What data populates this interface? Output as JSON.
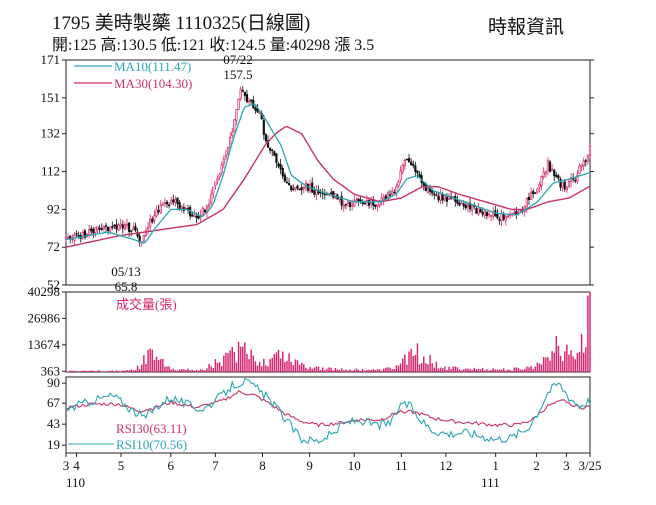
{
  "header": {
    "title": "1795  美時製藥 1110325(日線圖)",
    "source": "時報資訊",
    "quote_line": "開:125 高:130.5 低:121 收:124.5 量:40298 漲 3.5"
  },
  "colors": {
    "up": "#d6246e",
    "down": "#111111",
    "ma10": "#2aa6b0",
    "ma30": "#c8326a",
    "rsi10": "#2aa6b0",
    "rsi30": "#c8326a",
    "volume": "#d6246e",
    "frame": "#222222"
  },
  "chart_data": [
    {
      "type": "candlestick",
      "title": "1795 美時製藥 1110325(日線圖)",
      "y_ticks": [
        171,
        151,
        132,
        112,
        92,
        72,
        52
      ],
      "ylim": [
        52,
        171
      ],
      "legend": [
        {
          "name": "MA10",
          "label": "MA10(111.47)"
        },
        {
          "name": "MA30",
          "label": "MA30(104.30)"
        }
      ],
      "annotations": [
        {
          "date": "07/22",
          "value": "157.5",
          "kind": "high"
        },
        {
          "date": "05/13",
          "value": "65.8",
          "kind": "low"
        }
      ],
      "price_anchors": [
        [
          0,
          76
        ],
        [
          0.07,
          82
        ],
        [
          0.11,
          84
        ],
        [
          0.14,
          78
        ],
        [
          0.1,
          80
        ],
        [
          0.12,
          72
        ],
        [
          0.13,
          68
        ],
        [
          0.15,
          80
        ],
        [
          0.17,
          90
        ],
        [
          0.19,
          96
        ],
        [
          0.21,
          96
        ],
        [
          0.225,
          92
        ],
        [
          0.25,
          88
        ],
        [
          0.27,
          94
        ],
        [
          0.29,
          108
        ],
        [
          0.31,
          124
        ],
        [
          0.325,
          146
        ],
        [
          0.335,
          156
        ],
        [
          0.345,
          150
        ],
        [
          0.37,
          144
        ],
        [
          0.38,
          130
        ],
        [
          0.4,
          118
        ],
        [
          0.415,
          110
        ],
        [
          0.43,
          104
        ],
        [
          0.46,
          104
        ],
        [
          0.48,
          101
        ],
        [
          0.5,
          100
        ],
        [
          0.52,
          98
        ],
        [
          0.53,
          94
        ],
        [
          0.56,
          96
        ],
        [
          0.59,
          95
        ],
        [
          0.61,
          98
        ],
        [
          0.63,
          104
        ],
        [
          0.65,
          120
        ],
        [
          0.665,
          114
        ],
        [
          0.68,
          105
        ],
        [
          0.7,
          99
        ],
        [
          0.72,
          98
        ],
        [
          0.75,
          96
        ],
        [
          0.78,
          92
        ],
        [
          0.8,
          90
        ],
        [
          0.83,
          88
        ],
        [
          0.86,
          90
        ],
        [
          0.88,
          96
        ],
        [
          0.9,
          104
        ],
        [
          0.92,
          116
        ],
        [
          0.935,
          108
        ],
        [
          0.95,
          104
        ],
        [
          0.97,
          108
        ],
        [
          0.99,
          118
        ],
        [
          1,
          124.5
        ]
      ],
      "ma10_anchors": [
        [
          0,
          76
        ],
        [
          0.08,
          80
        ],
        [
          0.13,
          76
        ],
        [
          0.15,
          74
        ],
        [
          0.17,
          82
        ],
        [
          0.2,
          92
        ],
        [
          0.23,
          92
        ],
        [
          0.26,
          88
        ],
        [
          0.28,
          94
        ],
        [
          0.3,
          110
        ],
        [
          0.32,
          130
        ],
        [
          0.34,
          146
        ],
        [
          0.36,
          148
        ],
        [
          0.38,
          140
        ],
        [
          0.41,
          126
        ],
        [
          0.43,
          110
        ],
        [
          0.46,
          104
        ],
        [
          0.5,
          100
        ],
        [
          0.55,
          96
        ],
        [
          0.6,
          96
        ],
        [
          0.63,
          100
        ],
        [
          0.65,
          108
        ],
        [
          0.67,
          110
        ],
        [
          0.7,
          102
        ],
        [
          0.74,
          98
        ],
        [
          0.78,
          94
        ],
        [
          0.82,
          90
        ],
        [
          0.86,
          89
        ],
        [
          0.9,
          96
        ],
        [
          0.93,
          106
        ],
        [
          0.96,
          108
        ],
        [
          1,
          111.47
        ]
      ],
      "ma30_anchors": [
        [
          0,
          72
        ],
        [
          0.1,
          78
        ],
        [
          0.15,
          80
        ],
        [
          0.2,
          82
        ],
        [
          0.25,
          84
        ],
        [
          0.3,
          92
        ],
        [
          0.34,
          108
        ],
        [
          0.38,
          126
        ],
        [
          0.4,
          132
        ],
        [
          0.42,
          136
        ],
        [
          0.45,
          132
        ],
        [
          0.48,
          118
        ],
        [
          0.51,
          108
        ],
        [
          0.55,
          100
        ],
        [
          0.6,
          96
        ],
        [
          0.64,
          98
        ],
        [
          0.68,
          104
        ],
        [
          0.71,
          104
        ],
        [
          0.75,
          100
        ],
        [
          0.8,
          96
        ],
        [
          0.85,
          92
        ],
        [
          0.88,
          92
        ],
        [
          0.92,
          96
        ],
        [
          0.96,
          98
        ],
        [
          1,
          104.3
        ]
      ],
      "seed": 1795
    },
    {
      "type": "bar",
      "title": "成交量(張)",
      "y_ticks": [
        40298,
        26986,
        13674,
        363
      ],
      "ylim": [
        0,
        40298
      ],
      "volume_anchors": [
        [
          0,
          600
        ],
        [
          0.12,
          800
        ],
        [
          0.14,
          3000
        ],
        [
          0.15,
          8000
        ],
        [
          0.17,
          12000
        ],
        [
          0.19,
          4000
        ],
        [
          0.22,
          1500
        ],
        [
          0.26,
          1200
        ],
        [
          0.28,
          5000
        ],
        [
          0.31,
          9000
        ],
        [
          0.33,
          15000
        ],
        [
          0.35,
          10000
        ],
        [
          0.38,
          6000
        ],
        [
          0.41,
          13000
        ],
        [
          0.43,
          8000
        ],
        [
          0.46,
          4000
        ],
        [
          0.5,
          2000
        ],
        [
          0.55,
          1500
        ],
        [
          0.6,
          1200
        ],
        [
          0.63,
          3000
        ],
        [
          0.65,
          9000
        ],
        [
          0.67,
          12000
        ],
        [
          0.7,
          6000
        ],
        [
          0.73,
          2500
        ],
        [
          0.78,
          1800
        ],
        [
          0.84,
          1500
        ],
        [
          0.88,
          2500
        ],
        [
          0.9,
          4000
        ],
        [
          0.92,
          12000
        ],
        [
          0.93,
          20000
        ],
        [
          0.95,
          14000
        ],
        [
          0.97,
          11000
        ],
        [
          0.99,
          18000
        ],
        [
          1,
          40298
        ]
      ],
      "seed": 321
    },
    {
      "type": "line",
      "title": "RSI",
      "y_ticks": [
        90,
        67,
        43,
        19
      ],
      "ylim": [
        10,
        97
      ],
      "legend": [
        {
          "name": "RSI30",
          "label": "RSI30(63.11)"
        },
        {
          "name": "RSI10",
          "label": "RSI10(70.56)"
        }
      ],
      "rsi10_anchors": [
        [
          0,
          60
        ],
        [
          0.05,
          70
        ],
        [
          0.09,
          76
        ],
        [
          0.12,
          62
        ],
        [
          0.15,
          50
        ],
        [
          0.17,
          62
        ],
        [
          0.2,
          74
        ],
        [
          0.23,
          66
        ],
        [
          0.26,
          60
        ],
        [
          0.29,
          72
        ],
        [
          0.32,
          88
        ],
        [
          0.34,
          92
        ],
        [
          0.36,
          86
        ],
        [
          0.39,
          70
        ],
        [
          0.41,
          56
        ],
        [
          0.43,
          40
        ],
        [
          0.45,
          26
        ],
        [
          0.48,
          24
        ],
        [
          0.51,
          32
        ],
        [
          0.53,
          44
        ],
        [
          0.56,
          48
        ],
        [
          0.59,
          42
        ],
        [
          0.62,
          44
        ],
        [
          0.64,
          68
        ],
        [
          0.66,
          62
        ],
        [
          0.68,
          46
        ],
        [
          0.7,
          36
        ],
        [
          0.73,
          32
        ],
        [
          0.76,
          34
        ],
        [
          0.79,
          30
        ],
        [
          0.82,
          26
        ],
        [
          0.85,
          28
        ],
        [
          0.88,
          38
        ],
        [
          0.9,
          56
        ],
        [
          0.92,
          80
        ],
        [
          0.94,
          90
        ],
        [
          0.96,
          74
        ],
        [
          0.98,
          64
        ],
        [
          1,
          70.56
        ]
      ],
      "rsi30_anchors": [
        [
          0,
          62
        ],
        [
          0.05,
          66
        ],
        [
          0.1,
          66
        ],
        [
          0.14,
          58
        ],
        [
          0.17,
          62
        ],
        [
          0.2,
          68
        ],
        [
          0.25,
          62
        ],
        [
          0.3,
          70
        ],
        [
          0.33,
          80
        ],
        [
          0.36,
          76
        ],
        [
          0.39,
          66
        ],
        [
          0.42,
          54
        ],
        [
          0.45,
          46
        ],
        [
          0.48,
          42
        ],
        [
          0.52,
          44
        ],
        [
          0.56,
          48
        ],
        [
          0.6,
          48
        ],
        [
          0.64,
          58
        ],
        [
          0.67,
          56
        ],
        [
          0.7,
          50
        ],
        [
          0.74,
          46
        ],
        [
          0.78,
          44
        ],
        [
          0.82,
          42
        ],
        [
          0.86,
          42
        ],
        [
          0.89,
          48
        ],
        [
          0.92,
          64
        ],
        [
          0.95,
          70
        ],
        [
          0.98,
          62
        ],
        [
          1,
          63.11
        ]
      ],
      "seed": 77
    }
  ],
  "x_axis": {
    "ticks": [
      {
        "label": "3",
        "pos": 0.0
      },
      {
        "label": "4",
        "pos": 0.02
      },
      {
        "label": "5",
        "pos": 0.105
      },
      {
        "label": "6",
        "pos": 0.2
      },
      {
        "label": "7",
        "pos": 0.285
      },
      {
        "label": "8",
        "pos": 0.375
      },
      {
        "label": "9",
        "pos": 0.465
      },
      {
        "label": "10",
        "pos": 0.55
      },
      {
        "label": "11",
        "pos": 0.64
      },
      {
        "label": "12",
        "pos": 0.725
      },
      {
        "label": "1",
        "pos": 0.82
      },
      {
        "label": "2",
        "pos": 0.898
      },
      {
        "label": "3",
        "pos": 0.955
      },
      {
        "label": "3/25",
        "pos": 1.0
      }
    ],
    "years": [
      {
        "label": "110",
        "pos": 0.0
      },
      {
        "label": "111",
        "pos": 0.81
      }
    ]
  }
}
